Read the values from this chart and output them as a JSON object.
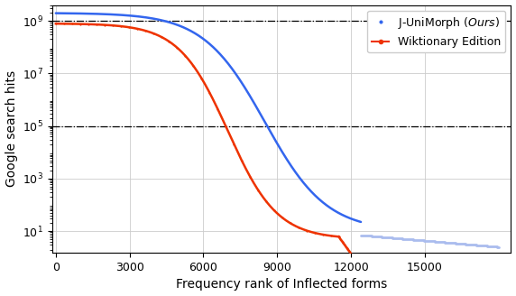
{
  "title": "",
  "xlabel": "Frequency rank of Inflected forms",
  "ylabel": "Google search hits",
  "xlim": [
    -150,
    18500
  ],
  "ylim_log": [
    1.5,
    4000000000.0
  ],
  "xticks": [
    0,
    3000,
    6000,
    9000,
    12000,
    15000
  ],
  "yticks": [
    10,
    1000,
    100000,
    10000000,
    1000000000
  ],
  "hlines": [
    1000000000.0,
    100000.0
  ],
  "blue_color": "#3366ee",
  "blue_color_light": "#aabcee",
  "red_color": "#ee3300",
  "legend_label_blue": "J-UniMorph ($\\it{Ours}$)",
  "legend_label_red": "Wiktionary Edition",
  "blue_n": 18000,
  "red_n": 12100,
  "blue_step_start": 12400
}
